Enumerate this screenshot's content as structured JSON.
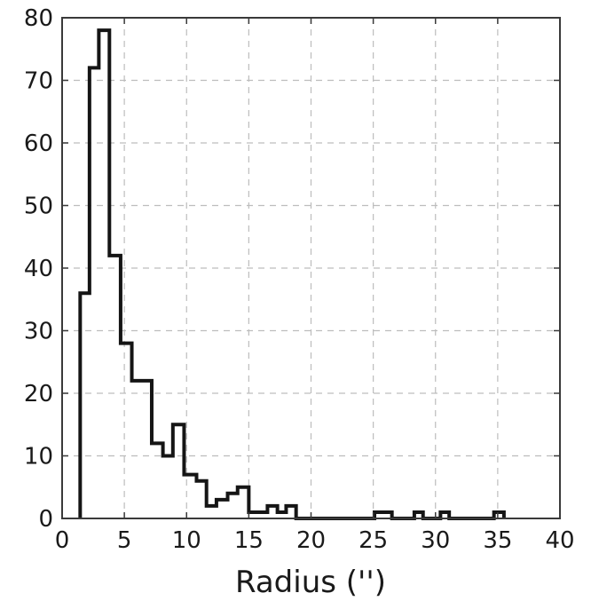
{
  "chart_data": {
    "type": "bar",
    "subtype": "step-histogram",
    "title": "",
    "xlabel": "Radius ('')",
    "ylabel": "",
    "xlim": [
      0,
      40
    ],
    "ylim": [
      0,
      80
    ],
    "xticks": [
      0,
      5,
      10,
      15,
      20,
      25,
      30,
      35,
      40
    ],
    "yticks": [
      0,
      10,
      20,
      30,
      40,
      50,
      60,
      70,
      80
    ],
    "grid": true,
    "series": [
      {
        "bin_edges": [
          1.45,
          2.2,
          2.95,
          3.8,
          4.7,
          5.6,
          7.2,
          8.1,
          8.9,
          9.8,
          10.8,
          11.6,
          12.4,
          13.3,
          14.1,
          15.0,
          16.5,
          17.3,
          18.0,
          18.8,
          19.5,
          25.1,
          26.5,
          28.3,
          29.0,
          30.4,
          31.1,
          34.7,
          35.5
        ],
        "counts": [
          36,
          72,
          78,
          42,
          28,
          22,
          12,
          10,
          15,
          7,
          6,
          2,
          3,
          4,
          5,
          1,
          2,
          1,
          2,
          0,
          0,
          1,
          0,
          1,
          0,
          1,
          0,
          1
        ]
      }
    ],
    "colors": {
      "line": "#151515",
      "grid": "#bdbdbd",
      "frame": "#3a3a3a"
    }
  }
}
